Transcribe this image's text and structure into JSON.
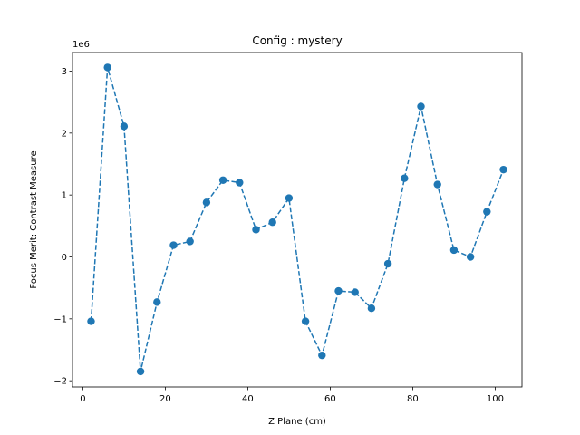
{
  "chart_data": {
    "type": "line",
    "title": "Config : mystery",
    "xlabel": "Z Plane (cm)",
    "ylabel": "Focus Merit: Contrast Measure",
    "y_offset_label": "1e6",
    "xlim": [
      -2.5,
      106.5
    ],
    "ylim": [
      -2100000,
      3300000
    ],
    "x_ticks": [
      0,
      20,
      40,
      60,
      80,
      100
    ],
    "x_tick_labels": [
      "0",
      "20",
      "40",
      "60",
      "80",
      "100"
    ],
    "y_ticks": [
      -2000000,
      -1000000,
      0,
      1000000,
      2000000,
      3000000
    ],
    "y_tick_labels": [
      "−2",
      "−1",
      "0",
      "1",
      "2",
      "3"
    ],
    "grid": false,
    "line_style": "dashed",
    "marker": "circle",
    "color": "#1f77b4",
    "x": [
      2,
      6,
      10,
      14,
      18,
      22,
      26,
      30,
      34,
      38,
      42,
      46,
      50,
      54,
      58,
      62,
      66,
      70,
      74,
      78,
      82,
      86,
      90,
      94,
      98,
      102
    ],
    "y": [
      -1040000,
      3060000,
      2110000,
      -1850000,
      -730000,
      190000,
      250000,
      880000,
      1240000,
      1200000,
      440000,
      560000,
      950000,
      -1040000,
      -1590000,
      -550000,
      -570000,
      -830000,
      -110000,
      1270000,
      2430000,
      1170000,
      110000,
      0,
      730000,
      1410000
    ]
  }
}
